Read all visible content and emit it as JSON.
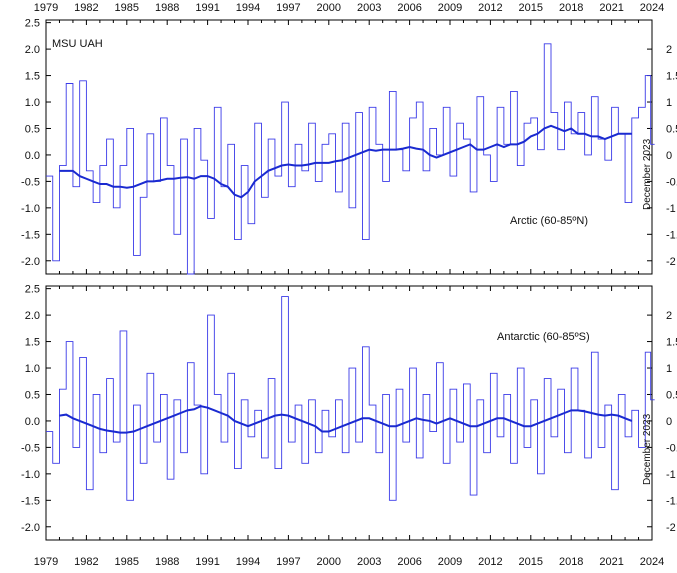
{
  "source_label": "MSU UAH",
  "top_axis_years": [
    "1979",
    "1982",
    "1985",
    "1988",
    "1991",
    "1994",
    "1997",
    "2000",
    "2003",
    "2006",
    "2009",
    "2012",
    "2015",
    "2018",
    "2021",
    "2024"
  ],
  "bottom_axis_years": [
    "1979",
    "1982",
    "1985",
    "1988",
    "1991",
    "1994",
    "1997",
    "2000",
    "2003",
    "2006",
    "2009",
    "2012",
    "2015",
    "2018",
    "2021",
    "2024"
  ],
  "colors": {
    "monthly": "#3a3ae8",
    "smooth": "#1a2ad0",
    "axis": "#000000",
    "right_label": "#2a2acc"
  },
  "chart_data": [
    {
      "type": "line",
      "annotation": "Arctic (60-85ºN)",
      "right_label": "December 2023",
      "xlim": [
        1979,
        2024
      ],
      "ylim": [
        -2.25,
        2.55
      ],
      "ytick_labels": [
        "2.5",
        "2.0",
        "1.5",
        "1.0",
        "0.5",
        "0.0",
        "-0.5",
        "-1.0",
        "-1.5",
        "-2.0"
      ],
      "right_ytick_labels": [
        "2",
        "1.5",
        "1",
        "0.5",
        "0",
        "-0.5",
        "-1",
        "-1.5",
        "-2"
      ],
      "x": [
        1979.0,
        1979.5,
        1980.0,
        1980.5,
        1981.0,
        1981.5,
        1982.0,
        1982.5,
        1983.0,
        1983.5,
        1984.0,
        1984.5,
        1985.0,
        1985.5,
        1986.0,
        1986.5,
        1987.0,
        1987.5,
        1988.0,
        1988.5,
        1989.0,
        1989.5,
        1990.0,
        1990.5,
        1991.0,
        1991.5,
        1992.0,
        1992.5,
        1993.0,
        1993.5,
        1994.0,
        1994.5,
        1995.0,
        1995.5,
        1996.0,
        1996.5,
        1997.0,
        1997.5,
        1998.0,
        1998.5,
        1999.0,
        1999.5,
        2000.0,
        2000.5,
        2001.0,
        2001.5,
        2002.0,
        2002.5,
        2003.0,
        2003.5,
        2004.0,
        2004.5,
        2005.0,
        2005.5,
        2006.0,
        2006.5,
        2007.0,
        2007.5,
        2008.0,
        2008.5,
        2009.0,
        2009.5,
        2010.0,
        2010.5,
        2011.0,
        2011.5,
        2012.0,
        2012.5,
        2013.0,
        2013.5,
        2014.0,
        2014.5,
        2015.0,
        2015.5,
        2016.0,
        2016.5,
        2017.0,
        2017.5,
        2018.0,
        2018.5,
        2019.0,
        2019.5,
        2020.0,
        2020.5,
        2021.0,
        2021.5,
        2022.0,
        2022.5,
        2023.0,
        2023.5,
        2023.9
      ],
      "series": [
        {
          "values": [
            -0.4,
            -2.0,
            -0.2,
            1.35,
            -0.6,
            1.4,
            -0.3,
            -0.9,
            -0.2,
            0.3,
            -1.0,
            -0.2,
            0.5,
            -1.9,
            -0.8,
            0.4,
            -0.5,
            0.7,
            -0.2,
            -1.5,
            0.3,
            -2.25,
            0.5,
            -0.1,
            -1.2,
            0.9,
            -0.6,
            0.2,
            -1.6,
            -0.2,
            -1.3,
            0.6,
            -0.8,
            0.3,
            -0.4,
            1.0,
            -0.6,
            0.2,
            -0.3,
            0.6,
            -0.5,
            0.2,
            0.4,
            -0.7,
            0.6,
            -1.0,
            0.8,
            -1.6,
            0.9,
            0.2,
            -0.5,
            1.2,
            0.1,
            -0.3,
            0.7,
            1.0,
            -0.3,
            0.5,
            0.0,
            0.9,
            -0.4,
            0.6,
            0.3,
            -0.7,
            1.1,
            0.0,
            -0.5,
            0.9,
            0.2,
            1.2,
            -0.2,
            0.6,
            0.7,
            0.1,
            2.1,
            0.8,
            0.1,
            1.0,
            0.4,
            0.8,
            0.0,
            1.1,
            0.3,
            -0.1,
            0.9,
            0.4,
            -0.9,
            0.7,
            0.9,
            1.5,
            0.2
          ]
        },
        {
          "values": [
            null,
            null,
            -0.3,
            -0.3,
            -0.3,
            -0.4,
            -0.45,
            -0.5,
            -0.55,
            -0.55,
            -0.6,
            -0.6,
            -0.62,
            -0.6,
            -0.55,
            -0.5,
            -0.5,
            -0.48,
            -0.45,
            -0.45,
            -0.43,
            -0.42,
            -0.45,
            -0.4,
            -0.4,
            -0.45,
            -0.55,
            -0.6,
            -0.75,
            -0.8,
            -0.7,
            -0.5,
            -0.4,
            -0.3,
            -0.25,
            -0.2,
            -0.18,
            -0.2,
            -0.2,
            -0.18,
            -0.15,
            -0.15,
            -0.15,
            -0.12,
            -0.1,
            -0.05,
            0.0,
            0.05,
            0.1,
            0.08,
            0.1,
            0.1,
            0.1,
            0.12,
            0.15,
            0.12,
            0.1,
            0.0,
            -0.05,
            0.0,
            0.05,
            0.1,
            0.15,
            0.2,
            0.1,
            0.1,
            0.15,
            0.2,
            0.15,
            0.2,
            0.2,
            0.25,
            0.35,
            0.4,
            0.5,
            0.55,
            0.5,
            0.45,
            0.5,
            0.4,
            0.4,
            0.35,
            0.35,
            0.3,
            0.35,
            0.4,
            0.4,
            0.4,
            null,
            null,
            null
          ]
        }
      ]
    },
    {
      "type": "line",
      "annotation": "Antarctic (60-85ºS)",
      "right_label": "December 2023",
      "xlim": [
        1979,
        2024
      ],
      "ylim": [
        -2.25,
        2.55
      ],
      "ytick_labels": [
        "2.5",
        "2.0",
        "1.5",
        "1.0",
        "0.5",
        "0.0",
        "-0.5",
        "-1.0",
        "-1.5",
        "-2.0"
      ],
      "right_ytick_labels": [
        "2",
        "1.5",
        "1",
        "0.5",
        "0",
        "-0.5",
        "-1",
        "-1.5",
        "-2"
      ],
      "x": [
        1979.0,
        1979.5,
        1980.0,
        1980.5,
        1981.0,
        1981.5,
        1982.0,
        1982.5,
        1983.0,
        1983.5,
        1984.0,
        1984.5,
        1985.0,
        1985.5,
        1986.0,
        1986.5,
        1987.0,
        1987.5,
        1988.0,
        1988.5,
        1989.0,
        1989.5,
        1990.0,
        1990.5,
        1991.0,
        1991.5,
        1992.0,
        1992.5,
        1993.0,
        1993.5,
        1994.0,
        1994.5,
        1995.0,
        1995.5,
        1996.0,
        1996.5,
        1997.0,
        1997.5,
        1998.0,
        1998.5,
        1999.0,
        1999.5,
        2000.0,
        2000.5,
        2001.0,
        2001.5,
        2002.0,
        2002.5,
        2003.0,
        2003.5,
        2004.0,
        2004.5,
        2005.0,
        2005.5,
        2006.0,
        2006.5,
        2007.0,
        2007.5,
        2008.0,
        2008.5,
        2009.0,
        2009.5,
        2010.0,
        2010.5,
        2011.0,
        2011.5,
        2012.0,
        2012.5,
        2013.0,
        2013.5,
        2014.0,
        2014.5,
        2015.0,
        2015.5,
        2016.0,
        2016.5,
        2017.0,
        2017.5,
        2018.0,
        2018.5,
        2019.0,
        2019.5,
        2020.0,
        2020.5,
        2021.0,
        2021.5,
        2022.0,
        2022.5,
        2023.0,
        2023.5,
        2023.9
      ],
      "series": [
        {
          "values": [
            -0.2,
            -0.8,
            0.6,
            1.5,
            -0.5,
            1.2,
            -1.3,
            0.5,
            -0.6,
            0.8,
            -0.4,
            1.7,
            -1.5,
            0.3,
            -0.8,
            0.9,
            -0.4,
            0.5,
            -1.1,
            0.4,
            -0.6,
            1.1,
            0.3,
            -1.0,
            2.0,
            0.5,
            -0.4,
            0.9,
            -0.9,
            0.4,
            -0.3,
            0.2,
            -0.7,
            0.8,
            -0.9,
            2.35,
            -0.4,
            0.3,
            -0.8,
            0.4,
            -0.6,
            0.2,
            -0.3,
            0.4,
            -0.6,
            1.0,
            -0.4,
            1.4,
            0.3,
            -0.6,
            0.5,
            -1.5,
            0.6,
            -0.4,
            1.0,
            -0.7,
            0.5,
            -0.2,
            1.1,
            -0.8,
            0.6,
            -0.4,
            0.7,
            -1.4,
            0.4,
            -0.6,
            0.9,
            -0.3,
            0.5,
            -0.8,
            1.0,
            -0.5,
            0.4,
            -1.0,
            0.8,
            -0.3,
            0.6,
            -0.6,
            1.0,
            0.2,
            -0.7,
            1.3,
            -0.5,
            0.3,
            -1.3,
            0.5,
            -0.3,
            0.2,
            -0.5,
            1.3,
            0.4
          ]
        },
        {
          "values": [
            null,
            null,
            0.1,
            0.12,
            0.05,
            0.0,
            -0.05,
            -0.1,
            -0.15,
            -0.18,
            -0.2,
            -0.22,
            -0.22,
            -0.2,
            -0.15,
            -0.1,
            -0.05,
            0.0,
            0.05,
            0.1,
            0.15,
            0.2,
            0.22,
            0.28,
            0.25,
            0.2,
            0.15,
            0.1,
            0.0,
            -0.05,
            -0.1,
            -0.05,
            0.0,
            0.05,
            0.1,
            0.12,
            0.1,
            0.05,
            0.0,
            -0.05,
            -0.1,
            -0.2,
            -0.2,
            -0.15,
            -0.1,
            -0.05,
            0.0,
            0.05,
            0.05,
            0.0,
            -0.05,
            -0.1,
            -0.1,
            -0.05,
            0.0,
            0.05,
            0.02,
            0.0,
            -0.05,
            0.0,
            0.05,
            0.0,
            -0.05,
            -0.1,
            -0.1,
            -0.05,
            0.0,
            0.05,
            0.05,
            0.0,
            -0.05,
            -0.1,
            -0.1,
            -0.05,
            0.0,
            0.05,
            0.1,
            0.15,
            0.2,
            0.2,
            0.18,
            0.15,
            0.12,
            0.1,
            0.12,
            0.1,
            0.05,
            0.0,
            null,
            null,
            null
          ]
        }
      ]
    }
  ]
}
